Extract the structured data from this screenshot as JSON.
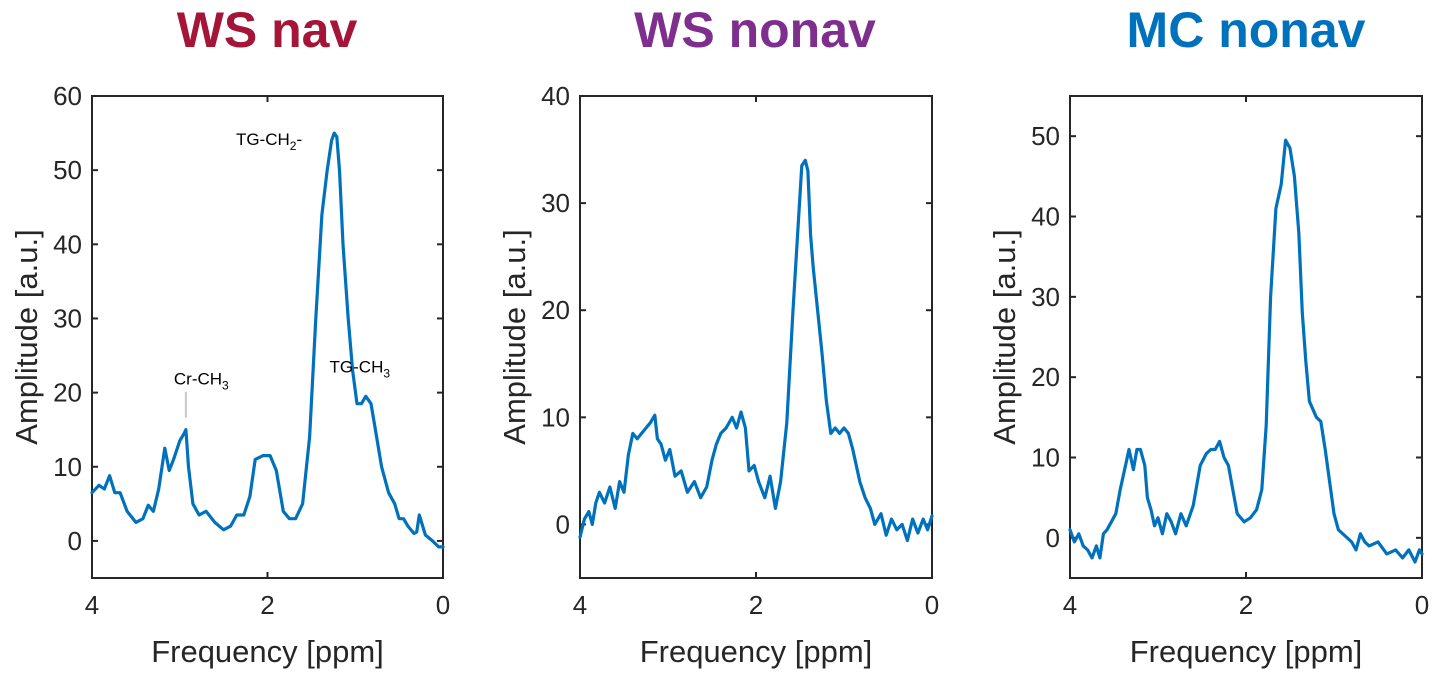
{
  "chart_data": [
    {
      "type": "line",
      "title": "WS nav",
      "title_color": "#A51538",
      "xlabel": "Frequency [ppm]",
      "ylabel": "Amplitude [a.u.]",
      "xlim": [
        4,
        0
      ],
      "ylim": [
        -5,
        60
      ],
      "xticks": [
        "4",
        "2",
        "0"
      ],
      "yticks": [
        "0",
        "10",
        "20",
        "30",
        "40",
        "50",
        "60"
      ],
      "line_color": "#0072BD",
      "annotations": [
        {
          "base": "Cr-CH",
          "sub": "3",
          "suffix": "",
          "x": 2.93,
          "y": 15
        },
        {
          "base": "TG-CH",
          "sub": "2",
          "suffix": "-",
          "x": 1.22,
          "y": 55
        },
        {
          "base": "TG-CH",
          "sub": "3",
          "suffix": "",
          "x": 0.86,
          "y": 20
        }
      ],
      "series": [
        {
          "name": "WS nav",
          "x": [
            4.0,
            3.92,
            3.86,
            3.8,
            3.74,
            3.68,
            3.6,
            3.5,
            3.42,
            3.36,
            3.3,
            3.24,
            3.17,
            3.12,
            3.07,
            3.0,
            2.95,
            2.93,
            2.9,
            2.85,
            2.78,
            2.7,
            2.6,
            2.5,
            2.42,
            2.35,
            2.27,
            2.2,
            2.14,
            2.05,
            1.97,
            1.9,
            1.82,
            1.75,
            1.68,
            1.6,
            1.52,
            1.45,
            1.38,
            1.32,
            1.27,
            1.24,
            1.21,
            1.18,
            1.14,
            1.08,
            1.03,
            0.98,
            0.93,
            0.88,
            0.82,
            0.77,
            0.7,
            0.62,
            0.55,
            0.5,
            0.45,
            0.4,
            0.33,
            0.3,
            0.27,
            0.2,
            0.12,
            0.05,
            0.0
          ],
          "y": [
            6.5,
            7.5,
            7.0,
            8.8,
            6.5,
            6.5,
            4.0,
            2.5,
            3.0,
            4.8,
            4.0,
            7.0,
            12.5,
            9.5,
            11.0,
            13.5,
            14.5,
            15.0,
            10.0,
            5.0,
            3.5,
            4.0,
            2.5,
            1.5,
            2.0,
            3.5,
            3.5,
            6.0,
            11.0,
            11.5,
            11.5,
            9.5,
            4.0,
            3.0,
            3.0,
            5.0,
            14.0,
            30.0,
            44.0,
            50.0,
            54.0,
            55.0,
            54.5,
            50.0,
            40.0,
            30.0,
            23.0,
            18.5,
            18.5,
            19.5,
            18.5,
            15.0,
            10.0,
            6.5,
            5.0,
            3.0,
            3.0,
            2.0,
            1.0,
            1.2,
            3.5,
            0.8,
            0.0,
            -0.8,
            -0.8
          ]
        }
      ]
    },
    {
      "type": "line",
      "title": "WS nonav",
      "title_color": "#7E2F8E",
      "xlabel": "Frequency [ppm]",
      "ylabel": "Amplitude [a.u.]",
      "xlim": [
        4,
        0
      ],
      "ylim": [
        -5,
        40
      ],
      "xticks": [
        "4",
        "2",
        "0"
      ],
      "yticks": [
        "0",
        "10",
        "20",
        "30",
        "40"
      ],
      "line_color": "#0072BD",
      "annotations": [],
      "series": [
        {
          "name": "WS nonav",
          "x": [
            4.0,
            3.95,
            3.9,
            3.86,
            3.82,
            3.78,
            3.72,
            3.66,
            3.6,
            3.55,
            3.5,
            3.45,
            3.4,
            3.35,
            3.3,
            3.25,
            3.2,
            3.15,
            3.12,
            3.08,
            3.03,
            2.98,
            2.92,
            2.85,
            2.78,
            2.7,
            2.63,
            2.56,
            2.5,
            2.45,
            2.4,
            2.34,
            2.27,
            2.22,
            2.17,
            2.12,
            2.08,
            2.02,
            1.97,
            1.9,
            1.84,
            1.78,
            1.72,
            1.65,
            1.58,
            1.52,
            1.48,
            1.44,
            1.41,
            1.38,
            1.35,
            1.3,
            1.25,
            1.2,
            1.15,
            1.1,
            1.05,
            1.0,
            0.95,
            0.9,
            0.86,
            0.82,
            0.76,
            0.7,
            0.65,
            0.58,
            0.52,
            0.46,
            0.4,
            0.34,
            0.28,
            0.22,
            0.16,
            0.1,
            0.05,
            0.0
          ],
          "y": [
            -1.2,
            0.5,
            1.2,
            0.0,
            2.0,
            3.0,
            2.0,
            3.5,
            1.5,
            4.0,
            3.0,
            6.5,
            8.5,
            8.0,
            8.5,
            9.0,
            9.5,
            10.2,
            8.0,
            7.5,
            6.0,
            7.0,
            4.5,
            5.0,
            3.0,
            4.0,
            2.5,
            3.5,
            6.0,
            7.5,
            8.5,
            9.0,
            10.0,
            9.0,
            10.5,
            9.0,
            5.0,
            5.5,
            4.0,
            2.5,
            4.5,
            1.5,
            4.0,
            9.5,
            20.0,
            28.0,
            33.5,
            34.0,
            33.0,
            27.0,
            24.0,
            20.0,
            16.0,
            11.5,
            8.5,
            9.0,
            8.5,
            9.0,
            8.5,
            7.0,
            5.5,
            4.0,
            2.5,
            1.5,
            0.0,
            1.0,
            -1.0,
            0.5,
            -0.5,
            0.0,
            -1.5,
            0.5,
            -0.8,
            0.5,
            -0.5,
            0.8
          ]
        }
      ]
    },
    {
      "type": "line",
      "title": "MC nonav",
      "title_color": "#0072BD",
      "xlabel": "Frequency [ppm]",
      "ylabel": "Amplitude [a.u.]",
      "xlim": [
        4,
        0
      ],
      "ylim": [
        -5,
        55
      ],
      "xticks": [
        "4",
        "2",
        "0"
      ],
      "yticks": [
        "0",
        "10",
        "20",
        "30",
        "40",
        "50"
      ],
      "line_color": "#0072BD",
      "annotations": [],
      "series": [
        {
          "name": "MC nonav",
          "x": [
            4.0,
            3.95,
            3.9,
            3.85,
            3.8,
            3.75,
            3.7,
            3.66,
            3.62,
            3.58,
            3.53,
            3.48,
            3.43,
            3.38,
            3.33,
            3.28,
            3.24,
            3.2,
            3.15,
            3.12,
            3.08,
            3.04,
            3.0,
            2.95,
            2.9,
            2.85,
            2.8,
            2.74,
            2.68,
            2.6,
            2.52,
            2.45,
            2.4,
            2.35,
            2.3,
            2.25,
            2.2,
            2.15,
            2.1,
            2.02,
            1.95,
            1.88,
            1.82,
            1.77,
            1.72,
            1.66,
            1.6,
            1.55,
            1.5,
            1.45,
            1.4,
            1.36,
            1.32,
            1.28,
            1.24,
            1.2,
            1.15,
            1.1,
            1.05,
            1.0,
            0.95,
            0.9,
            0.85,
            0.8,
            0.75,
            0.7,
            0.65,
            0.6,
            0.5,
            0.4,
            0.3,
            0.22,
            0.15,
            0.08,
            0.03,
            0.0
          ],
          "y": [
            1.0,
            -0.5,
            0.5,
            -1.0,
            -1.5,
            -2.5,
            -1.0,
            -2.5,
            0.5,
            1.0,
            2.0,
            3.0,
            6.0,
            8.5,
            11.0,
            8.5,
            11.0,
            11.0,
            9.0,
            5.0,
            3.5,
            1.5,
            2.5,
            0.5,
            3.0,
            2.0,
            0.5,
            3.0,
            1.5,
            4.0,
            9.0,
            10.5,
            11.0,
            11.0,
            12.0,
            10.0,
            9.0,
            6.0,
            3.0,
            2.0,
            2.5,
            3.5,
            6.0,
            14.0,
            30.0,
            41.0,
            44.0,
            49.5,
            48.5,
            45.0,
            38.0,
            28.0,
            22.0,
            17.0,
            16.0,
            15.0,
            14.5,
            11.0,
            7.0,
            3.0,
            1.0,
            0.5,
            0.0,
            -0.5,
            -1.5,
            0.5,
            -0.5,
            -1.0,
            -0.5,
            -2.0,
            -1.5,
            -2.5,
            -1.5,
            -3.0,
            -1.5,
            -2.0
          ]
        }
      ]
    }
  ]
}
